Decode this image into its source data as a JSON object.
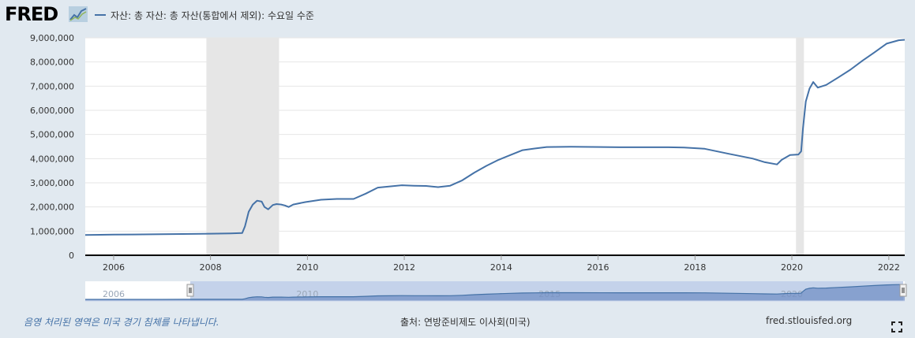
{
  "header": {
    "logo_text": "FRED",
    "legend_label": "자산: 총 자산: 총 자산(통합에서 제외): 수요일 수준"
  },
  "footer": {
    "recession_note": "음영 처리된 영역은 미국 경기 침체를 나타냅니다.",
    "source": "출처: 연방준비제도 이사회(미국)",
    "site": "fred.stlouisfed.org"
  },
  "colors": {
    "series": "#4572a7",
    "recession": "#e6e6e6",
    "background": "#e1e9f0",
    "plot": "#ffffff"
  },
  "icons": {
    "logo": "fred-logo-graph-icon",
    "fullscreen": "fullscreen-icon",
    "navigator_handle": "grip-handle-icon"
  },
  "chart_data": {
    "type": "line",
    "title": "",
    "xlabel": "",
    "ylabel": "",
    "x_range": [
      "2005-06-01",
      "2022-05-01"
    ],
    "ylim": [
      0,
      9000000
    ],
    "y_ticks": [
      0,
      1000000,
      2000000,
      3000000,
      4000000,
      5000000,
      6000000,
      7000000,
      8000000,
      9000000
    ],
    "y_tick_labels": [
      "0",
      "1,000,000",
      "2,000,000",
      "3,000,000",
      "4,000,000",
      "5,000,000",
      "6,000,000",
      "7,000,000",
      "8,000,000",
      "9,000,000"
    ],
    "x_ticks": [
      "2006-01-01",
      "2008-01-01",
      "2010-01-01",
      "2012-01-01",
      "2014-01-01",
      "2016-01-01",
      "2018-01-01",
      "2020-01-01",
      "2022-01-01"
    ],
    "x_tick_labels": [
      "2006",
      "2008",
      "2010",
      "2012",
      "2014",
      "2016",
      "2018",
      "2020",
      "2022"
    ],
    "grid": true,
    "legend": "top-left",
    "recessions": [
      {
        "start": "2007-12-01",
        "end": "2009-06-01"
      },
      {
        "start": "2020-02-01",
        "end": "2020-04-01"
      }
    ],
    "series": [
      {
        "name": "자산: 총 자산: 총 자산(통합에서 제외): 수요일 수준",
        "points": [
          [
            "2005-06-01",
            840000
          ],
          [
            "2006-01-01",
            855000
          ],
          [
            "2006-06-01",
            860000
          ],
          [
            "2007-01-01",
            870000
          ],
          [
            "2007-06-01",
            880000
          ],
          [
            "2008-01-01",
            895000
          ],
          [
            "2008-06-01",
            905000
          ],
          [
            "2008-08-27",
            920000
          ],
          [
            "2008-09-17",
            1200000
          ],
          [
            "2008-10-15",
            1800000
          ],
          [
            "2008-11-15",
            2100000
          ],
          [
            "2008-12-17",
            2260000
          ],
          [
            "2009-01-21",
            2220000
          ],
          [
            "2009-02-11",
            2000000
          ],
          [
            "2009-03-11",
            1900000
          ],
          [
            "2009-04-15",
            2080000
          ],
          [
            "2009-05-13",
            2120000
          ],
          [
            "2009-06-17",
            2100000
          ],
          [
            "2009-07-15",
            2060000
          ],
          [
            "2009-08-12",
            2000000
          ],
          [
            "2009-09-16",
            2100000
          ],
          [
            "2009-12-16",
            2200000
          ],
          [
            "2010-04-14",
            2300000
          ],
          [
            "2010-08-11",
            2330000
          ],
          [
            "2010-12-15",
            2330000
          ],
          [
            "2011-03-16",
            2550000
          ],
          [
            "2011-06-15",
            2800000
          ],
          [
            "2011-09-14",
            2850000
          ],
          [
            "2011-12-14",
            2900000
          ],
          [
            "2012-03-14",
            2880000
          ],
          [
            "2012-06-13",
            2870000
          ],
          [
            "2012-09-12",
            2820000
          ],
          [
            "2012-12-12",
            2880000
          ],
          [
            "2013-03-13",
            3100000
          ],
          [
            "2013-06-12",
            3420000
          ],
          [
            "2013-09-11",
            3700000
          ],
          [
            "2013-12-11",
            3950000
          ],
          [
            "2014-03-12",
            4150000
          ],
          [
            "2014-06-11",
            4350000
          ],
          [
            "2014-09-10",
            4420000
          ],
          [
            "2014-12-10",
            4480000
          ],
          [
            "2015-06-10",
            4490000
          ],
          [
            "2016-06-15",
            4470000
          ],
          [
            "2017-06-14",
            4470000
          ],
          [
            "2017-10-11",
            4460000
          ],
          [
            "2018-03-14",
            4410000
          ],
          [
            "2018-09-12",
            4200000
          ],
          [
            "2019-03-13",
            4000000
          ],
          [
            "2019-06-12",
            3850000
          ],
          [
            "2019-09-11",
            3760000
          ],
          [
            "2019-10-16",
            3950000
          ],
          [
            "2019-12-18",
            4150000
          ],
          [
            "2020-02-19",
            4170000
          ],
          [
            "2020-03-11",
            4300000
          ],
          [
            "2020-03-25",
            5250000
          ],
          [
            "2020-04-15",
            6370000
          ],
          [
            "2020-05-13",
            6900000
          ],
          [
            "2020-06-10",
            7170000
          ],
          [
            "2020-07-15",
            6940000
          ],
          [
            "2020-09-16",
            7050000
          ],
          [
            "2020-12-16",
            7360000
          ],
          [
            "2021-03-17",
            7680000
          ],
          [
            "2021-06-16",
            8050000
          ],
          [
            "2021-09-15",
            8400000
          ],
          [
            "2021-12-15",
            8760000
          ],
          [
            "2022-03-16",
            8900000
          ],
          [
            "2022-05-01",
            8920000
          ]
        ]
      }
    ]
  },
  "navigator": {
    "x_labels": [
      "2006",
      "2010",
      "2015",
      "2020"
    ]
  }
}
